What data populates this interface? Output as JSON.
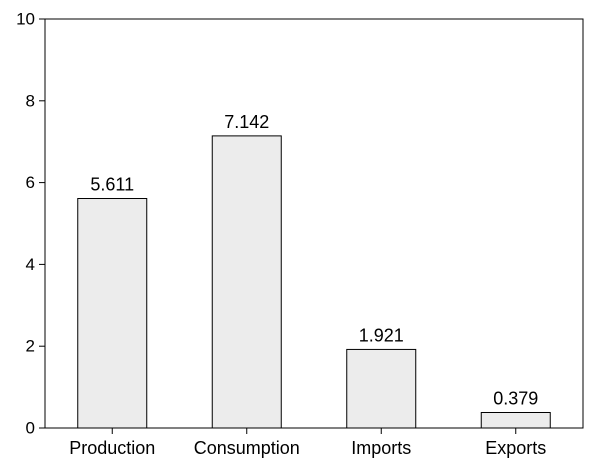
{
  "chart_data": {
    "type": "bar",
    "title": "",
    "xlabel": "",
    "ylabel": "",
    "categories": [
      "Production",
      "Consumption",
      "Imports",
      "Exports"
    ],
    "values": [
      5.611,
      7.142,
      1.921,
      0.379
    ],
    "value_labels": [
      "5.611",
      "7.142",
      "1.921",
      "0.379"
    ],
    "ylim": [
      0,
      10
    ],
    "yticks": [
      0,
      2,
      4,
      6,
      8,
      10
    ],
    "ytick_labels": [
      "0",
      "2",
      "4",
      "6",
      "8",
      "10"
    ],
    "grid": false,
    "legend": "none",
    "bar_fill": "#ececec",
    "bar_stroke": "#000000"
  }
}
